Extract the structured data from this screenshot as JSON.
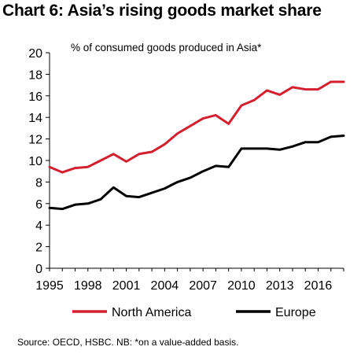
{
  "chart_data": {
    "type": "line",
    "title": "Chart 6: Asia’s rising goods market share",
    "ylabel": "% of consumed goods produced in Asia*",
    "xlabel": "",
    "xlim": [
      1995,
      2018
    ],
    "ylim": [
      0,
      20
    ],
    "x_ticks": [
      1995,
      1998,
      2001,
      2004,
      2007,
      2010,
      2013,
      2016
    ],
    "y_ticks": [
      0,
      2,
      4,
      6,
      8,
      10,
      12,
      14,
      16,
      18,
      20
    ],
    "grid": false,
    "legend_position": "bottom",
    "x": [
      1995,
      1996,
      1997,
      1998,
      1999,
      2000,
      2001,
      2002,
      2003,
      2004,
      2005,
      2006,
      2007,
      2008,
      2009,
      2010,
      2011,
      2012,
      2013,
      2014,
      2015,
      2016,
      2017,
      2018
    ],
    "series": [
      {
        "name": "North America",
        "color": "#d2202f",
        "values": [
          9.4,
          8.9,
          9.3,
          9.4,
          10.0,
          10.6,
          9.9,
          10.6,
          10.8,
          11.5,
          12.5,
          13.2,
          13.9,
          14.2,
          13.4,
          15.1,
          15.6,
          16.5,
          16.1,
          16.8,
          16.6,
          16.6,
          17.3,
          17.3
        ]
      },
      {
        "name": "Europe",
        "color": "#000000",
        "values": [
          5.6,
          5.5,
          5.9,
          6.0,
          6.4,
          7.5,
          6.7,
          6.6,
          7.0,
          7.4,
          8.0,
          8.4,
          9.0,
          9.5,
          9.4,
          11.1,
          11.1,
          11.1,
          11.0,
          11.3,
          11.7,
          11.7,
          12.2,
          12.3
        ]
      }
    ]
  },
  "source_note": "Source: OECD, HSBC. NB: *on a value-added basis."
}
